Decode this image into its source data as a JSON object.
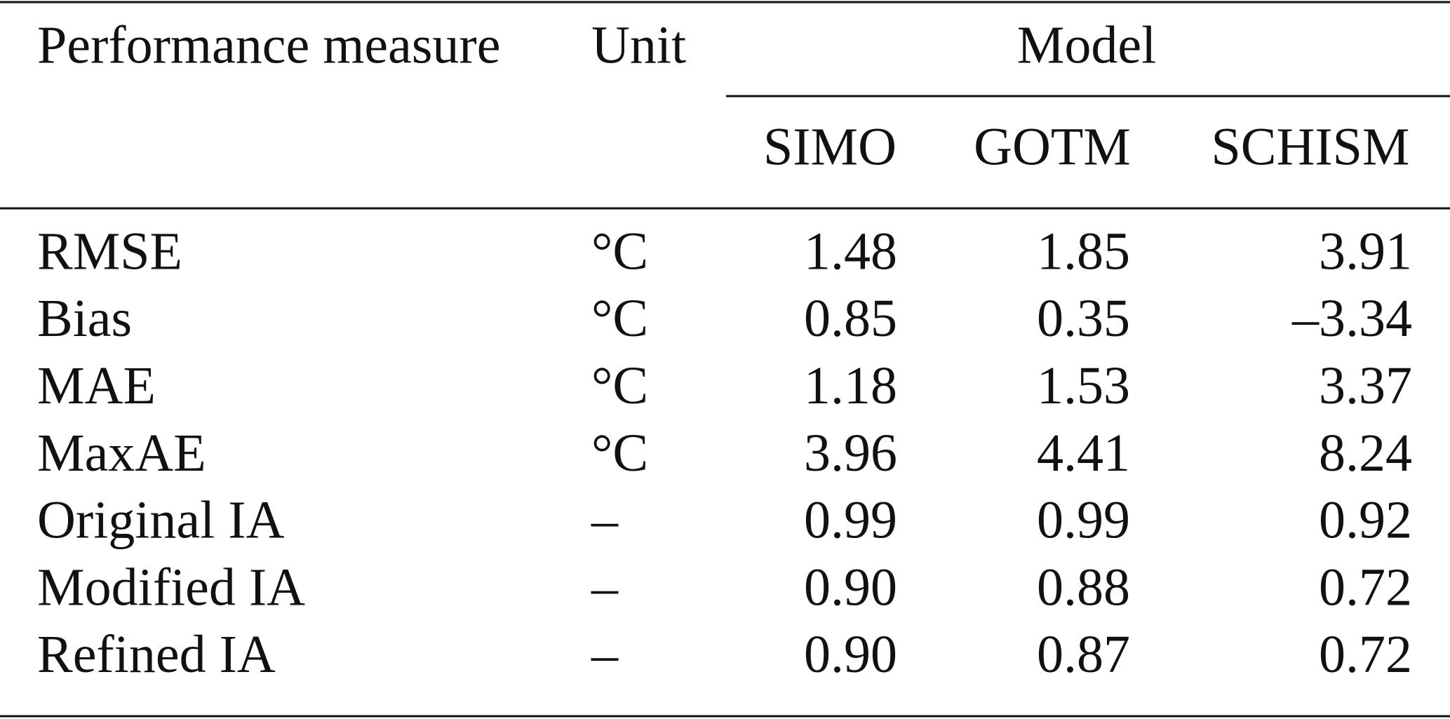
{
  "table": {
    "header": {
      "measure": "Performance measure",
      "unit": "Unit",
      "group": "Model",
      "models": [
        "SIMO",
        "GOTM",
        "SCHISM"
      ]
    },
    "rows": [
      [
        "RMSE",
        "°C",
        "1.48",
        "1.85",
        "3.91"
      ],
      [
        "Bias",
        "°C",
        "0.85",
        "0.35",
        "–3.34"
      ],
      [
        "MAE",
        "°C",
        "1.18",
        "1.53",
        "3.37"
      ],
      [
        "MaxAE",
        "°C",
        "3.96",
        "4.41",
        "8.24"
      ],
      [
        "Original IA",
        "–",
        "0.99",
        "0.99",
        "0.92"
      ],
      [
        "Modified IA",
        "–",
        "0.90",
        "0.88",
        "0.72"
      ],
      [
        "Refined IA",
        "–",
        "0.90",
        "0.87",
        "0.72"
      ]
    ]
  }
}
